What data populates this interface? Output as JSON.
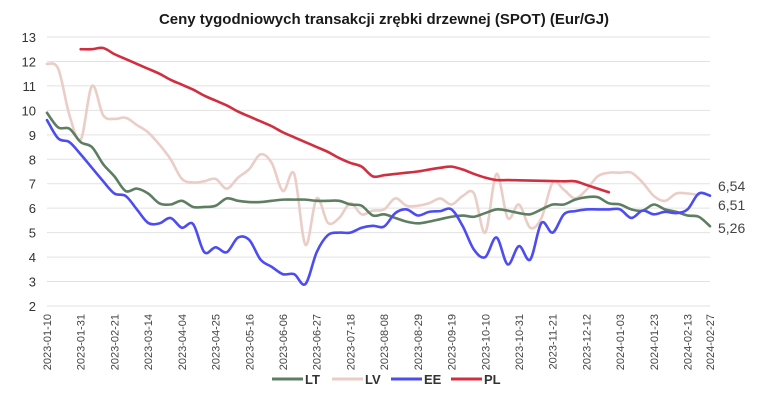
{
  "chart_data": {
    "type": "line",
    "title": "Ceny tygodniowych transakcji zrębki drzewnej (SPOT) (Eur/GJ)",
    "xlabel": "",
    "ylabel": "",
    "ylim": [
      2,
      13
    ],
    "yticks": [
      2,
      3,
      4,
      5,
      6,
      7,
      8,
      9,
      10,
      11,
      12,
      13
    ],
    "grid": "horizontal",
    "legend_position": "bottom",
    "x": [
      "2023-01-10",
      "2023-01-17",
      "2023-01-24",
      "2023-01-31",
      "2023-02-07",
      "2023-02-14",
      "2023-02-21",
      "2023-02-28",
      "2023-03-07",
      "2023-03-14",
      "2023-03-21",
      "2023-03-28",
      "2023-04-04",
      "2023-04-11",
      "2023-04-18",
      "2023-04-25",
      "2023-05-02",
      "2023-05-09",
      "2023-05-16",
      "2023-05-23",
      "2023-05-30",
      "2023-06-06",
      "2023-06-13",
      "2023-06-20",
      "2023-06-27",
      "2023-07-04",
      "2023-07-11",
      "2023-07-18",
      "2023-07-25",
      "2023-08-01",
      "2023-08-08",
      "2023-08-15",
      "2023-08-22",
      "2023-08-29",
      "2023-09-05",
      "2023-09-12",
      "2023-09-19",
      "2023-09-26",
      "2023-10-03",
      "2023-10-10",
      "2023-10-17",
      "2023-10-24",
      "2023-10-31",
      "2023-11-07",
      "2023-11-14",
      "2023-11-21",
      "2023-11-28",
      "2023-12-05",
      "2023-12-12",
      "2023-12-19",
      "2023-12-26",
      "2024-01-03",
      "2024-01-09",
      "2024-01-16",
      "2024-01-23",
      "2024-01-30",
      "2024-02-06",
      "2024-02-13",
      "2024-02-20",
      "2024-02-27"
    ],
    "xtick_labels": [
      "2023-01-10",
      "2023-01-31",
      "2023-02-21",
      "2023-03-14",
      "2023-04-04",
      "2023-04-25",
      "2023-05-16",
      "2023-06-06",
      "2023-06-27",
      "2023-07-18",
      "2023-08-08",
      "2023-08-29",
      "2023-09-19",
      "2023-10-10",
      "2023-10-31",
      "2023-11-21",
      "2023-12-12",
      "2024-01-03",
      "2024-01-23",
      "2024-02-13",
      "2024-02-27"
    ],
    "series": [
      {
        "name": "LT",
        "color": "#5e7e62",
        "values": [
          9.9,
          9.3,
          9.25,
          8.7,
          8.5,
          7.8,
          7.3,
          6.7,
          6.8,
          6.6,
          6.2,
          6.15,
          6.3,
          6.05,
          6.05,
          6.1,
          6.4,
          6.3,
          6.25,
          6.25,
          6.3,
          6.35,
          6.35,
          6.35,
          6.3,
          6.3,
          6.3,
          6.15,
          6.1,
          5.7,
          5.75,
          5.6,
          5.45,
          5.38,
          5.45,
          5.55,
          5.65,
          5.7,
          5.65,
          5.8,
          5.95,
          5.9,
          5.8,
          5.75,
          5.95,
          6.15,
          6.15,
          6.35,
          6.45,
          6.45,
          6.2,
          6.15,
          5.95,
          5.9,
          6.15,
          5.95,
          5.85,
          5.7,
          5.65,
          5.26
        ]
      },
      {
        "name": "LV",
        "color": "#ebcdc7",
        "values": [
          11.9,
          11.7,
          9.8,
          8.8,
          11.0,
          9.8,
          9.65,
          9.7,
          9.4,
          9.1,
          8.6,
          8.0,
          7.2,
          7.05,
          7.1,
          7.2,
          6.8,
          7.25,
          7.6,
          8.2,
          7.85,
          6.7,
          7.4,
          4.5,
          6.4,
          5.4,
          5.6,
          6.2,
          5.75,
          5.9,
          5.95,
          6.4,
          6.1,
          6.1,
          6.2,
          6.4,
          6.15,
          6.5,
          6.6,
          5.0,
          7.4,
          5.6,
          6.15,
          5.2,
          5.6,
          7.05,
          6.75,
          6.4,
          6.75,
          7.3,
          7.45,
          7.45,
          7.45,
          7.05,
          6.5,
          6.3,
          6.6,
          6.6,
          6.54,
          null
        ]
      },
      {
        "name": "EE",
        "color": "#4c4cf2",
        "values": [
          9.6,
          8.85,
          8.7,
          8.2,
          7.65,
          7.1,
          6.6,
          6.5,
          5.95,
          5.4,
          5.38,
          5.6,
          5.2,
          5.35,
          4.2,
          4.4,
          4.2,
          4.8,
          4.7,
          3.9,
          3.6,
          3.3,
          3.3,
          2.9,
          4.2,
          4.9,
          5.0,
          5.0,
          5.2,
          5.28,
          5.25,
          5.8,
          5.95,
          5.7,
          5.85,
          5.88,
          5.95,
          5.26,
          4.3,
          4.0,
          4.8,
          3.7,
          4.45,
          3.9,
          5.4,
          5.0,
          5.75,
          5.88,
          5.95,
          5.95,
          5.95,
          5.95,
          5.6,
          5.9,
          5.75,
          5.85,
          5.8,
          5.95,
          6.6,
          6.51
        ]
      },
      {
        "name": "PL",
        "color": "#d12f40",
        "values": [
          null,
          null,
          null,
          12.5,
          12.5,
          12.55,
          12.3,
          12.1,
          11.9,
          11.7,
          11.5,
          11.25,
          11.05,
          10.85,
          10.6,
          10.4,
          10.2,
          9.95,
          9.75,
          9.55,
          9.35,
          9.1,
          8.9,
          8.7,
          8.5,
          8.3,
          8.05,
          7.85,
          7.7,
          7.3,
          7.35,
          7.4,
          7.45,
          7.5,
          7.58,
          7.65,
          7.7,
          7.58,
          7.4,
          7.25,
          7.15,
          7.15,
          7.14,
          7.13,
          7.12,
          7.11,
          7.1,
          7.1,
          6.95,
          6.8,
          6.65,
          null,
          null,
          null,
          null,
          null,
          null,
          null,
          null,
          null
        ]
      }
    ],
    "end_labels": [
      "6,54",
      "6,51",
      "5,26"
    ]
  }
}
